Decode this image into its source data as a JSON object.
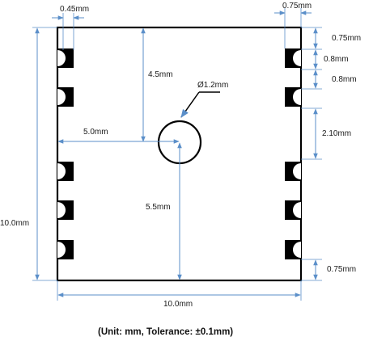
{
  "colors": {
    "outline": "#000000",
    "pad": "#000000",
    "dimension": "#5b8fc9",
    "text": "#1a1a1a"
  },
  "labels": {
    "pad_width": "0.45mm",
    "right_pad_depth": "0.75mm",
    "top_pad_offset": "0.75mm",
    "pad_length": "0.8mm",
    "pad_gap": "0.8mm",
    "pitch_gap": "2.10mm",
    "bottom_pad_offset": "0.75mm",
    "hole_top_offset": "4.5mm",
    "hole_left_offset": "5.0mm",
    "hole_diameter": "Ø1.2mm",
    "hole_bottom_offset": "5.5mm",
    "body_height": "10.0mm",
    "body_width": "10.0mm"
  },
  "caption": "(Unit: mm, Tolerance: ±0.1mm)"
}
